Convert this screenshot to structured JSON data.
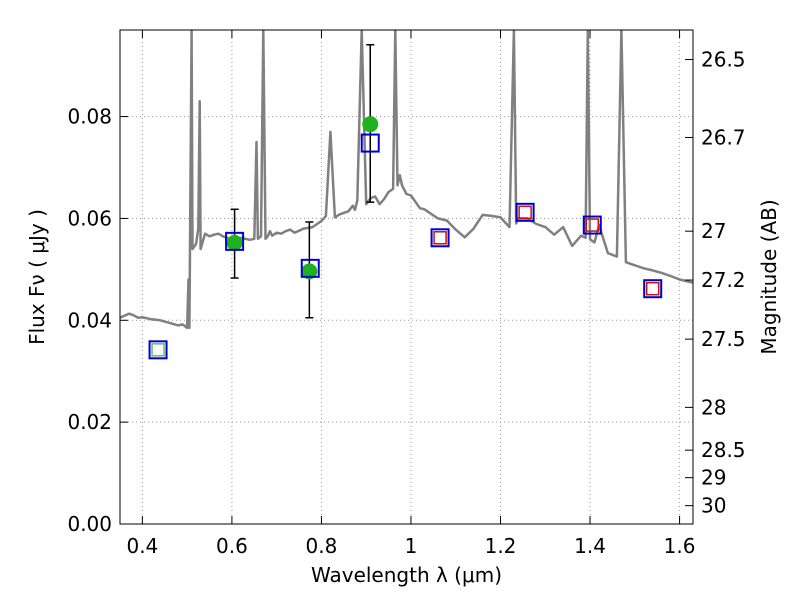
{
  "chart_data": {
    "type": "line",
    "xlabel": "Wavelength  λ (μm)",
    "ylabel": "Flux  Fν  ( μJy )",
    "y2label": "Magnitude (AB)",
    "xlim": [
      0.35,
      1.63
    ],
    "ylim": [
      0.0,
      0.097
    ],
    "grid": true,
    "x_ticks": [
      0.4,
      0.6,
      0.8,
      1.0,
      1.2,
      1.4,
      1.6
    ],
    "x_tick_labels": [
      "0.4",
      "0.6",
      "0.8",
      "1",
      "1.2",
      "1.4",
      "1.6"
    ],
    "y_ticks": [
      0.0,
      0.02,
      0.04,
      0.06,
      0.08
    ],
    "y_tick_labels": [
      "0.00",
      "0.02",
      "0.04",
      "0.06",
      "0.08"
    ],
    "mag_ticks": [
      {
        "label": "26.5",
        "flux": 0.0912
      },
      {
        "label": "26.7",
        "flux": 0.0759
      },
      {
        "label": "27",
        "flux": 0.0575
      },
      {
        "label": "27.2",
        "flux": 0.0479
      },
      {
        "label": "27.5",
        "flux": 0.0363
      },
      {
        "label": "28",
        "flux": 0.0229
      },
      {
        "label": "28.5",
        "flux": 0.0145
      },
      {
        "label": "29",
        "flux": 0.0091
      },
      {
        "label": "30",
        "flux": 0.0036
      }
    ],
    "colors": {
      "model": "#808080",
      "observed": "#1fb21f",
      "errorbar": "#000000",
      "model_box": "#0000cc",
      "inner_green": "#66bb66",
      "inner_red": "#cc1111",
      "grid": "#999999"
    },
    "series": [
      {
        "kind": "model_spectrum",
        "x": [
          0.35,
          0.37,
          0.38,
          0.39,
          0.4,
          0.42,
          0.44,
          0.46,
          0.48,
          0.49,
          0.5,
          0.503,
          0.505,
          0.51,
          0.512,
          0.52,
          0.525,
          0.528,
          0.53,
          0.535,
          0.54,
          0.55,
          0.56,
          0.57,
          0.58,
          0.6,
          0.62,
          0.64,
          0.65,
          0.655,
          0.658,
          0.665,
          0.67,
          0.675,
          0.68,
          0.685,
          0.69,
          0.7,
          0.71,
          0.72,
          0.73,
          0.74,
          0.75,
          0.76,
          0.78,
          0.8,
          0.81,
          0.82,
          0.83,
          0.84,
          0.86,
          0.87,
          0.875,
          0.88,
          0.89,
          0.9,
          0.91,
          0.92,
          0.93,
          0.94,
          0.95,
          0.96,
          0.965,
          0.97,
          0.975,
          0.98,
          0.99,
          1.0,
          1.02,
          1.03,
          1.06,
          1.08,
          1.1,
          1.12,
          1.14,
          1.16,
          1.18,
          1.2,
          1.22,
          1.23,
          1.235,
          1.24,
          1.26,
          1.28,
          1.3,
          1.32,
          1.34,
          1.36,
          1.38,
          1.39,
          1.395,
          1.4,
          1.41,
          1.42,
          1.44,
          1.46,
          1.47,
          1.48,
          1.5,
          1.52,
          1.54,
          1.56,
          1.58,
          1.6,
          1.63
        ],
        "y": [
          0.0405,
          0.0413,
          0.041,
          0.0405,
          0.0406,
          0.0402,
          0.04,
          0.0395,
          0.039,
          0.0392,
          0.0385,
          0.048,
          0.0385,
          0.097,
          0.054,
          0.055,
          0.058,
          0.083,
          0.054,
          0.0555,
          0.057,
          0.0565,
          0.0568,
          0.057,
          0.0565,
          0.0558,
          0.0562,
          0.0558,
          0.056,
          0.075,
          0.056,
          0.0565,
          0.097,
          0.056,
          0.0565,
          0.0575,
          0.0566,
          0.0572,
          0.057,
          0.0575,
          0.0578,
          0.0572,
          0.0576,
          0.058,
          0.0583,
          0.0595,
          0.0605,
          0.077,
          0.0602,
          0.0608,
          0.0614,
          0.0625,
          0.0617,
          0.0635,
          0.097,
          0.0628,
          0.064,
          0.0643,
          0.0628,
          0.0638,
          0.0652,
          0.0658,
          0.097,
          0.0665,
          0.0685,
          0.0665,
          0.0648,
          0.0645,
          0.062,
          0.0618,
          0.06,
          0.0596,
          0.0578,
          0.0563,
          0.058,
          0.0607,
          0.0605,
          0.0602,
          0.0583,
          0.097,
          0.059,
          0.06,
          0.06,
          0.0589,
          0.0583,
          0.0568,
          0.0583,
          0.0546,
          0.0566,
          0.0562,
          0.097,
          0.0559,
          0.0553,
          0.0587,
          0.0532,
          0.0525,
          0.097,
          0.0514,
          0.0508,
          0.0502,
          0.0498,
          0.0493,
          0.0487,
          0.048,
          0.0474
        ]
      },
      {
        "kind": "observed",
        "x": [
          0.606,
          0.773,
          0.909
        ],
        "y": [
          0.0552,
          0.0496,
          0.0785
        ],
        "yerr_low": [
          0.0483,
          0.0405,
          0.0632
        ],
        "yerr_high": [
          0.0618,
          0.0593,
          0.0941
        ]
      },
      {
        "kind": "model_photometry",
        "x": [
          0.435,
          0.606,
          0.775,
          0.909,
          1.065,
          1.255,
          1.405,
          1.54
        ],
        "y": [
          0.0342,
          0.0555,
          0.0502,
          0.0748,
          0.0562,
          0.0612,
          0.0587,
          0.0462
        ],
        "inner": [
          "green",
          "none",
          "none",
          "none",
          "red",
          "red",
          "red",
          "red"
        ]
      }
    ]
  }
}
